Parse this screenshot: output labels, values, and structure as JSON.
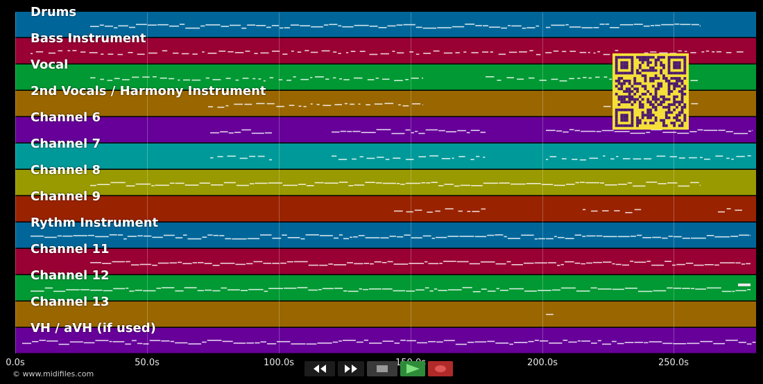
{
  "tracks": [
    {
      "name": "Drums",
      "color": "#006699"
    },
    {
      "name": "Bass Instrument",
      "color": "#990033"
    },
    {
      "name": "Vocal",
      "color": "#009933"
    },
    {
      "name": "2nd Vocals / Harmony Instrument",
      "color": "#996600"
    },
    {
      "name": "Channel 6",
      "color": "#660099"
    },
    {
      "name": "Channel 7",
      "color": "#009999"
    },
    {
      "name": "Channel 8",
      "color": "#999900"
    },
    {
      "name": "Channel 9",
      "color": "#992200"
    },
    {
      "name": "Rythm Instrument",
      "color": "#006699"
    },
    {
      "name": "Channel 11",
      "color": "#990033"
    },
    {
      "name": "Channel 12",
      "color": "#009933"
    },
    {
      "name": "Channel 13",
      "color": "#996600"
    },
    {
      "name": "VH / aVH (if used)",
      "color": "#660099"
    }
  ],
  "timeline": {
    "ticks": [
      "0.0s",
      "50.0s",
      "100.0s",
      "150.0s",
      "200.0s",
      "250.0s"
    ]
  },
  "footer": {
    "copyright": "© www.midifiles.com"
  },
  "controls": {
    "rewind": {
      "icon": "rewind-icon"
    },
    "fast_forward": {
      "icon": "fast-forward-icon"
    },
    "stop": {
      "icon": "stop-icon"
    },
    "play": {
      "icon": "play-icon",
      "color": "#2e8b3a"
    },
    "record": {
      "icon": "record-icon",
      "color": "#b02a2a"
    }
  },
  "qr_code": {
    "foreground": "#4b1a6e",
    "background": "#f5e03a"
  }
}
